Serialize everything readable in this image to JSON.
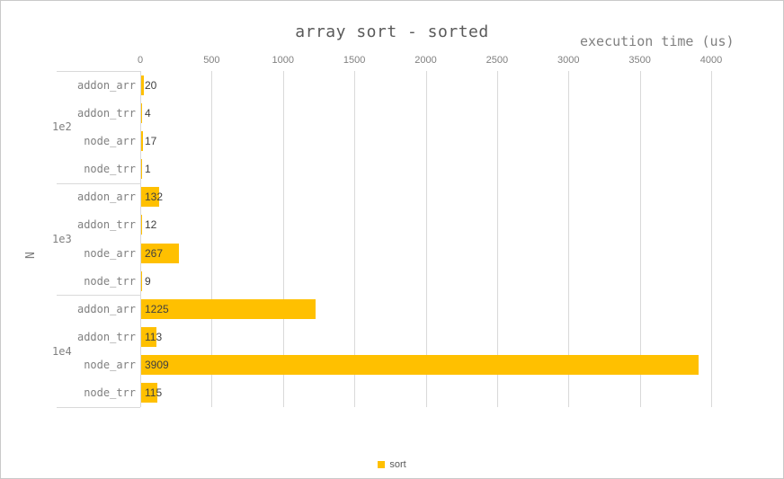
{
  "chart_data": {
    "type": "bar",
    "orientation": "horizontal",
    "title": "array sort - sorted",
    "xlabel": "execution time (us)",
    "ylabel": "N",
    "xlim": [
      0,
      4000
    ],
    "xticks": [
      0,
      500,
      1000,
      1500,
      2000,
      2500,
      3000,
      3500,
      4000
    ],
    "grid": true,
    "data_labels_shown": true,
    "legend_position": "bottom-center",
    "series_name": "sort",
    "groups": [
      {
        "label": "1e2",
        "rows": [
          {
            "category": "addon_arr",
            "value": 20
          },
          {
            "category": "addon_trr",
            "value": 4
          },
          {
            "category": "node_arr",
            "value": 17
          },
          {
            "category": "node_trr",
            "value": 1
          }
        ]
      },
      {
        "label": "1e3",
        "rows": [
          {
            "category": "addon_arr",
            "value": 132
          },
          {
            "category": "addon_trr",
            "value": 12
          },
          {
            "category": "node_arr",
            "value": 267
          },
          {
            "category": "node_trr",
            "value": 9
          }
        ]
      },
      {
        "label": "1e4",
        "rows": [
          {
            "category": "addon_arr",
            "value": 1225
          },
          {
            "category": "addon_trr",
            "value": 113
          },
          {
            "category": "node_arr",
            "value": 3909
          },
          {
            "category": "node_trr",
            "value": 115
          }
        ]
      }
    ]
  },
  "colors": {
    "bar": "#FFC000",
    "title_text": "#595959",
    "axis_text": "#808080",
    "data_label_text": "#404040",
    "gridline": "#D9D9D9",
    "legend_text": "#595959"
  }
}
